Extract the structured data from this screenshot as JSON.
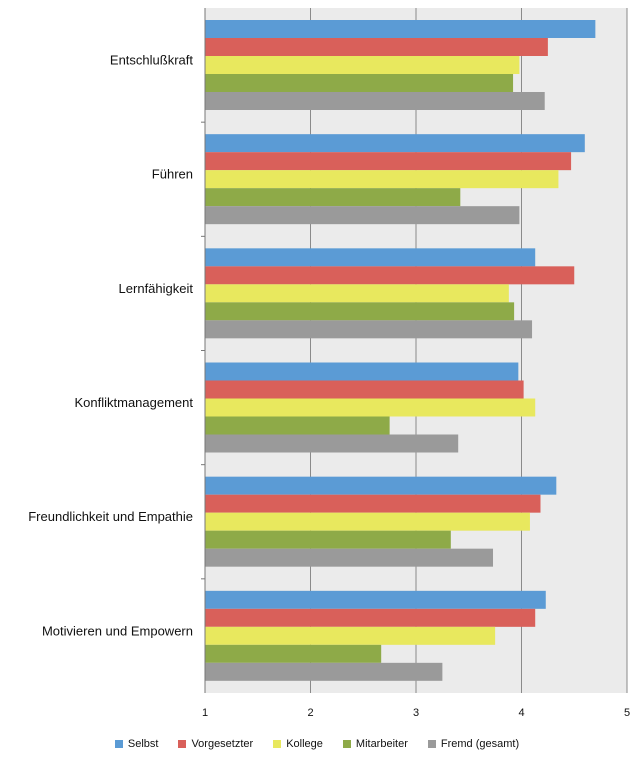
{
  "chart_data": {
    "type": "bar",
    "orientation": "horizontal",
    "categories": [
      "Entschlußkraft",
      "Führen",
      "Lernfähigkeit",
      "Konfliktmanagement",
      "Freundlichkeit und Empathie",
      "Motivieren und Empowern"
    ],
    "series": [
      {
        "name": "Selbst",
        "color": "#5b9bd5",
        "values": [
          4.7,
          4.6,
          4.13,
          3.97,
          4.33,
          4.23
        ]
      },
      {
        "name": "Vorgesetzter",
        "color": "#d9605a",
        "values": [
          4.25,
          4.47,
          4.5,
          4.02,
          4.18,
          4.13
        ]
      },
      {
        "name": "Kollege",
        "color": "#e8e85e",
        "values": [
          3.98,
          4.35,
          3.88,
          4.13,
          4.08,
          3.75
        ]
      },
      {
        "name": "Mitarbeiter",
        "color": "#8eaa48",
        "values": [
          3.92,
          3.42,
          3.93,
          2.75,
          3.33,
          2.67
        ]
      },
      {
        "name": "Fremd (gesamt)",
        "color": "#9a9a9a",
        "values": [
          4.22,
          3.98,
          4.1,
          3.4,
          3.73,
          3.25
        ]
      }
    ],
    "xlim": [
      1,
      5
    ],
    "xticks": [
      "1",
      "2",
      "3",
      "4",
      "5"
    ],
    "grid": true,
    "legend_position": "bottom",
    "plot_background": "#ebebeb"
  }
}
